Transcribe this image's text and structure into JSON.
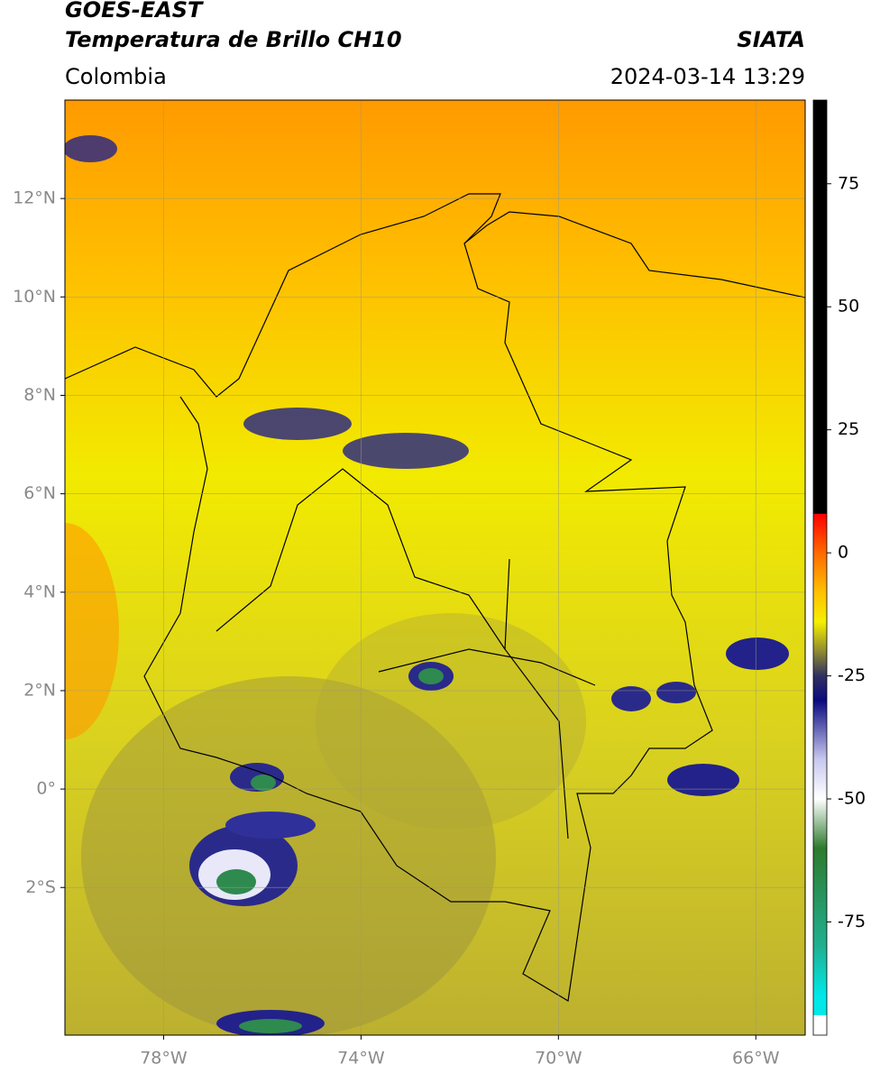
{
  "chart_data": {
    "type": "map",
    "title": "GOES-EAST",
    "subtitle": "Temperatura de Brillo CH10",
    "source": "SIATA",
    "region": "Colombia",
    "timestamp": "2024-03-14 13:29",
    "xlim": [
      -80,
      -65
    ],
    "xticks": [
      {
        "value": -78,
        "label": "78°W"
      },
      {
        "value": -74,
        "label": "74°W"
      },
      {
        "value": -70,
        "label": "70°W"
      },
      {
        "value": -66,
        "label": "66°W"
      }
    ],
    "ylim": [
      -5,
      14
    ],
    "yticks": [
      {
        "value": 12,
        "label": "12°N"
      },
      {
        "value": 10,
        "label": "10°N"
      },
      {
        "value": 8,
        "label": "8°N"
      },
      {
        "value": 6,
        "label": "6°N"
      },
      {
        "value": 4,
        "label": "4°N"
      },
      {
        "value": 2,
        "label": "2°N"
      },
      {
        "value": 0,
        "label": "0°"
      },
      {
        "value": -2,
        "label": "2°S"
      }
    ],
    "grid": true,
    "colorbar": {
      "lim": [
        -98,
        92
      ],
      "ticks": [
        75,
        50,
        25,
        0,
        -25,
        -50,
        -75
      ],
      "scale": [
        {
          "value": 92,
          "color": "#000000"
        },
        {
          "value": 8,
          "color": "#000000"
        },
        {
          "value": 7.9,
          "color": "#ff0000"
        },
        {
          "value": 0,
          "color": "#ff6a00"
        },
        {
          "value": -8,
          "color": "#ffc000"
        },
        {
          "value": -14,
          "color": "#f5f000"
        },
        {
          "value": -20,
          "color": "#8f8a30"
        },
        {
          "value": -25,
          "color": "#303060"
        },
        {
          "value": -30,
          "color": "#0a0a80"
        },
        {
          "value": -42,
          "color": "#c8c8f0"
        },
        {
          "value": -50,
          "color": "#ffffff"
        },
        {
          "value": -60,
          "color": "#2e7a2e"
        },
        {
          "value": -80,
          "color": "#20b090"
        },
        {
          "value": -90,
          "color": "#00e8e8"
        },
        {
          "value": -93.9,
          "color": "#00e8e8"
        },
        {
          "value": -94,
          "color": "#ffffff"
        },
        {
          "value": -98,
          "color": "#ffffff"
        }
      ]
    }
  }
}
